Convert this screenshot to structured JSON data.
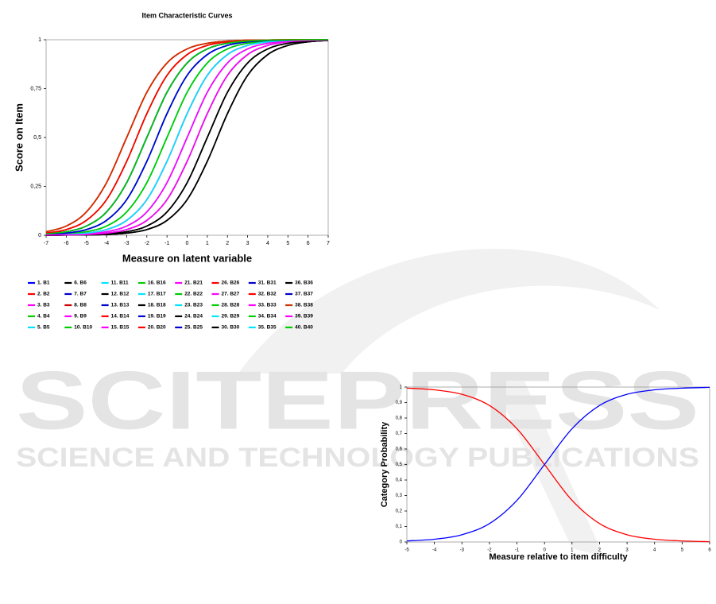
{
  "watermark": {
    "title": "SCITEPRESS",
    "subtitle": "SCIENCE AND TECHNOLOGY PUBLICATIONS"
  },
  "chart_data": [
    {
      "type": "line",
      "title": "Item Characteristic Curves",
      "x_label": "Measure on latent variable",
      "y_label": "Score on Item",
      "x": [
        -7,
        -6,
        -5,
        -4,
        -3,
        -2,
        -1,
        0,
        1,
        2,
        3,
        4,
        5,
        6,
        7
      ],
      "xlim": [
        -7,
        7
      ],
      "xticks": [
        -7,
        -6,
        -5,
        -4,
        -3,
        -2,
        -1,
        0,
        1,
        2,
        3,
        4,
        5,
        6,
        7
      ],
      "ylim": [
        0,
        1
      ],
      "yticks": [
        0,
        {
          "value": 0.25,
          "label": "0,25"
        },
        {
          "value": 0.5,
          "label": "0,5"
        },
        {
          "value": 0.75,
          "label": "0,75"
        },
        1
      ],
      "grid": false,
      "legend": "bottom",
      "series": [
        {
          "name": "1. B1",
          "color": "#0000ff",
          "values": [
            0.004,
            0.011,
            0.029,
            0.076,
            0.182,
            0.378,
            0.622,
            0.818,
            0.924,
            0.971,
            0.989,
            0.996,
            0.998,
            0.999,
            1
          ]
        },
        {
          "name": "2. B2",
          "color": "#ff0000",
          "values": [
            0.018,
            0.047,
            0.119,
            0.269,
            0.5,
            0.731,
            0.881,
            0.953,
            0.982,
            0.993,
            0.998,
            0.999,
            1,
            1,
            1
          ]
        },
        {
          "name": "3. B3",
          "color": "#ff00ff",
          "values": [
            0.001,
            0.002,
            0.007,
            0.018,
            0.047,
            0.119,
            0.269,
            0.5,
            0.731,
            0.881,
            0.953,
            0.982,
            0.993,
            0.998,
            0.999
          ]
        },
        {
          "name": "4. B4",
          "color": "#00cc00",
          "values": [
            0.011,
            0.029,
            0.076,
            0.182,
            0.378,
            0.622,
            0.818,
            0.924,
            0.971,
            0.989,
            0.996,
            0.998,
            0.999,
            1,
            1
          ]
        },
        {
          "name": "5. B5",
          "color": "#00e5ff",
          "values": [
            0.002,
            0.007,
            0.018,
            0.047,
            0.119,
            0.269,
            0.5,
            0.731,
            0.881,
            0.953,
            0.982,
            0.993,
            0.998,
            0.999,
            1
          ]
        },
        {
          "name": "6. B6",
          "color": "#000000",
          "values": [
            0,
            0.001,
            0.002,
            0.007,
            0.018,
            0.047,
            0.119,
            0.269,
            0.5,
            0.731,
            0.881,
            0.953,
            0.982,
            0.993,
            0.998
          ]
        },
        {
          "name": "7. B7",
          "color": "#0000cc",
          "values": [
            0.007,
            0.018,
            0.047,
            0.119,
            0.269,
            0.5,
            0.731,
            0.881,
            0.953,
            0.982,
            0.993,
            0.998,
            0.999,
            1,
            1
          ]
        },
        {
          "name": "8. B8",
          "color": "#cc0000",
          "values": [
            0.002,
            0.004,
            0.011,
            0.029,
            0.076,
            0.182,
            0.378,
            0.622,
            0.818,
            0.924,
            0.971,
            0.989,
            0.996,
            0.998,
            0.999
          ]
        },
        {
          "name": "9. B9",
          "color": "#ff00ff",
          "values": [
            0.001,
            0.002,
            0.004,
            0.011,
            0.029,
            0.076,
            0.182,
            0.378,
            0.622,
            0.818,
            0.924,
            0.971,
            0.989,
            0.996,
            0.998
          ]
        },
        {
          "name": "10. B10",
          "color": "#00cc00",
          "values": [
            0.011,
            0.029,
            0.076,
            0.182,
            0.378,
            0.622,
            0.818,
            0.924,
            0.971,
            0.989,
            0.996,
            0.998,
            0.999,
            1,
            1
          ]
        },
        {
          "name": "11. B11",
          "color": "#00e5ff",
          "values": [
            0.002,
            0.007,
            0.018,
            0.047,
            0.119,
            0.269,
            0.5,
            0.731,
            0.881,
            0.953,
            0.982,
            0.993,
            0.998,
            0.999,
            1
          ]
        },
        {
          "name": "12. B12",
          "color": "#000000",
          "values": [
            0,
            0.001,
            0.002,
            0.004,
            0.011,
            0.029,
            0.076,
            0.182,
            0.378,
            0.622,
            0.818,
            0.924,
            0.971,
            0.989,
            0.996
          ]
        },
        {
          "name": "13. B13",
          "color": "#0000cc",
          "values": [
            0.004,
            0.011,
            0.029,
            0.076,
            0.182,
            0.378,
            0.622,
            0.818,
            0.924,
            0.971,
            0.989,
            0.996,
            0.998,
            0.999,
            1
          ]
        },
        {
          "name": "14. B14",
          "color": "#ff0000",
          "values": [
            0.018,
            0.047,
            0.119,
            0.269,
            0.5,
            0.731,
            0.881,
            0.953,
            0.982,
            0.993,
            0.998,
            0.999,
            1,
            1,
            1
          ]
        },
        {
          "name": "15. B15",
          "color": "#ff00ff",
          "values": [
            0.001,
            0.002,
            0.007,
            0.018,
            0.047,
            0.119,
            0.269,
            0.5,
            0.731,
            0.881,
            0.953,
            0.982,
            0.993,
            0.998,
            0.999
          ]
        },
        {
          "name": "16. B16",
          "color": "#00cc00",
          "values": [
            0.007,
            0.018,
            0.047,
            0.119,
            0.269,
            0.5,
            0.731,
            0.881,
            0.953,
            0.982,
            0.993,
            0.998,
            0.999,
            1,
            1
          ]
        },
        {
          "name": "17. B17",
          "color": "#00e5ff",
          "values": [
            0.002,
            0.004,
            0.011,
            0.029,
            0.076,
            0.182,
            0.378,
            0.622,
            0.818,
            0.924,
            0.971,
            0.989,
            0.996,
            0.998,
            0.999
          ]
        },
        {
          "name": "18. B18",
          "color": "#000000",
          "values": [
            0,
            0.001,
            0.002,
            0.007,
            0.018,
            0.047,
            0.119,
            0.269,
            0.5,
            0.731,
            0.881,
            0.953,
            0.982,
            0.993,
            0.998
          ]
        },
        {
          "name": "19. B19",
          "color": "#0000cc",
          "values": [
            0.004,
            0.011,
            0.029,
            0.076,
            0.182,
            0.378,
            0.622,
            0.818,
            0.924,
            0.971,
            0.989,
            0.996,
            0.998,
            0.999,
            1
          ]
        },
        {
          "name": "20. B20",
          "color": "#ff0000",
          "values": [
            0.011,
            0.029,
            0.076,
            0.182,
            0.378,
            0.622,
            0.818,
            0.924,
            0.971,
            0.989,
            0.996,
            0.998,
            0.999,
            1,
            1
          ]
        },
        {
          "name": "21. B21",
          "color": "#ff00ff",
          "values": [
            0.001,
            0.002,
            0.004,
            0.011,
            0.029,
            0.076,
            0.182,
            0.378,
            0.622,
            0.818,
            0.924,
            0.971,
            0.989,
            0.996,
            0.998
          ]
        },
        {
          "name": "22. B22",
          "color": "#00cc00",
          "values": [
            0.002,
            0.007,
            0.018,
            0.047,
            0.119,
            0.269,
            0.5,
            0.731,
            0.881,
            0.953,
            0.982,
            0.993,
            0.998,
            0.999,
            1
          ]
        },
        {
          "name": "23. B23",
          "color": "#00e5ff",
          "values": [
            0.001,
            0.002,
            0.007,
            0.018,
            0.047,
            0.119,
            0.269,
            0.5,
            0.731,
            0.881,
            0.953,
            0.982,
            0.993,
            0.998,
            0.999
          ]
        },
        {
          "name": "24. B24",
          "color": "#000000",
          "values": [
            0,
            0.001,
            0.002,
            0.004,
            0.011,
            0.029,
            0.076,
            0.182,
            0.378,
            0.622,
            0.818,
            0.924,
            0.971,
            0.989,
            0.996
          ]
        },
        {
          "name": "25. B25",
          "color": "#0000cc",
          "values": [
            0.007,
            0.018,
            0.047,
            0.119,
            0.269,
            0.5,
            0.731,
            0.881,
            0.953,
            0.982,
            0.993,
            0.998,
            0.999,
            1,
            1
          ]
        },
        {
          "name": "26. B26",
          "color": "#ff0000",
          "values": [
            0.018,
            0.047,
            0.119,
            0.269,
            0.5,
            0.731,
            0.881,
            0.953,
            0.982,
            0.993,
            0.998,
            0.999,
            1,
            1,
            1
          ]
        },
        {
          "name": "27. B27",
          "color": "#ff00ff",
          "values": [
            0.002,
            0.004,
            0.011,
            0.029,
            0.076,
            0.182,
            0.378,
            0.622,
            0.818,
            0.924,
            0.971,
            0.989,
            0.996,
            0.998,
            0.999
          ]
        },
        {
          "name": "28. B28",
          "color": "#00cc00",
          "values": [
            0.001,
            0.002,
            0.004,
            0.011,
            0.029,
            0.076,
            0.182,
            0.378,
            0.622,
            0.818,
            0.924,
            0.971,
            0.989,
            0.996,
            0.998
          ]
        },
        {
          "name": "29. B29",
          "color": "#00e5ff",
          "values": [
            0.004,
            0.011,
            0.029,
            0.076,
            0.182,
            0.378,
            0.622,
            0.818,
            0.924,
            0.971,
            0.989,
            0.996,
            0.998,
            0.999,
            1
          ]
        },
        {
          "name": "30. B30",
          "color": "#000000",
          "values": [
            0,
            0.001,
            0.002,
            0.004,
            0.011,
            0.029,
            0.076,
            0.182,
            0.378,
            0.622,
            0.818,
            0.924,
            0.971,
            0.989,
            0.996
          ]
        },
        {
          "name": "31. B31",
          "color": "#0000cc",
          "values": [
            0.007,
            0.018,
            0.047,
            0.119,
            0.269,
            0.5,
            0.731,
            0.881,
            0.953,
            0.982,
            0.993,
            0.998,
            0.999,
            1,
            1
          ]
        },
        {
          "name": "32. B32",
          "color": "#ff0000",
          "values": [
            0.011,
            0.029,
            0.076,
            0.182,
            0.378,
            0.622,
            0.818,
            0.924,
            0.971,
            0.989,
            0.996,
            0.998,
            0.999,
            1,
            1
          ]
        },
        {
          "name": "33. B33",
          "color": "#ff00ff",
          "values": [
            0.001,
            0.002,
            0.007,
            0.018,
            0.047,
            0.119,
            0.269,
            0.5,
            0.731,
            0.881,
            0.953,
            0.982,
            0.993,
            0.998,
            0.999
          ]
        },
        {
          "name": "34. B34",
          "color": "#00cc00",
          "values": [
            0.002,
            0.007,
            0.018,
            0.047,
            0.119,
            0.269,
            0.5,
            0.731,
            0.881,
            0.953,
            0.982,
            0.993,
            0.998,
            0.999,
            1
          ]
        },
        {
          "name": "35. B35",
          "color": "#00e5ff",
          "values": [
            0.002,
            0.004,
            0.011,
            0.029,
            0.076,
            0.182,
            0.378,
            0.622,
            0.818,
            0.924,
            0.971,
            0.989,
            0.996,
            0.998,
            0.999
          ]
        },
        {
          "name": "36. B36",
          "color": "#000000",
          "values": [
            0,
            0.001,
            0.002,
            0.007,
            0.018,
            0.047,
            0.119,
            0.269,
            0.5,
            0.731,
            0.881,
            0.953,
            0.982,
            0.993,
            0.998
          ]
        },
        {
          "name": "37. B37",
          "color": "#0000cc",
          "values": [
            0.004,
            0.011,
            0.029,
            0.076,
            0.182,
            0.378,
            0.622,
            0.818,
            0.924,
            0.971,
            0.989,
            0.996,
            0.998,
            0.999,
            1
          ]
        },
        {
          "name": "38. B38",
          "color": "#cc3300",
          "values": [
            0.018,
            0.047,
            0.119,
            0.269,
            0.5,
            0.731,
            0.881,
            0.953,
            0.982,
            0.993,
            0.998,
            0.999,
            1,
            1,
            1
          ]
        },
        {
          "name": "39. B39",
          "color": "#ff00ff",
          "values": [
            0.001,
            0.002,
            0.004,
            0.011,
            0.029,
            0.076,
            0.182,
            0.378,
            0.622,
            0.818,
            0.924,
            0.971,
            0.989,
            0.996,
            0.998
          ]
        },
        {
          "name": "40. B40",
          "color": "#00cc00",
          "values": [
            0.007,
            0.018,
            0.047,
            0.119,
            0.269,
            0.5,
            0.731,
            0.881,
            0.953,
            0.982,
            0.993,
            0.998,
            0.999,
            1,
            1
          ]
        }
      ]
    },
    {
      "type": "line",
      "x_label": "Measure relative to item difficulty",
      "y_label": "Category Probability",
      "x": [
        -5,
        -4,
        -3,
        -2,
        -1,
        0,
        1,
        2,
        3,
        4,
        5,
        6
      ],
      "xlim": [
        -5,
        6
      ],
      "xticks": [
        -5,
        -4,
        -3,
        -2,
        -1,
        0,
        1,
        2,
        3,
        4,
        5,
        6
      ],
      "ylim": [
        0,
        1
      ],
      "yticks": [
        0,
        {
          "value": 0.1,
          "label": "0,1"
        },
        {
          "value": 0.2,
          "label": "0,2"
        },
        {
          "value": 0.3,
          "label": "0,3"
        },
        {
          "value": 0.4,
          "label": "0,4"
        },
        {
          "value": 0.5,
          "label": "0,5"
        },
        {
          "value": 0.6,
          "label": "0,6"
        },
        {
          "value": 0.7,
          "label": "0,7"
        },
        {
          "value": 0.8,
          "label": "0,8"
        },
        {
          "value": 0.9,
          "label": "0,9"
        },
        1
      ],
      "grid": false,
      "series": [
        {
          "color": "#ff0000",
          "values": [
            0.993,
            0.982,
            0.953,
            0.881,
            0.731,
            0.5,
            0.269,
            0.119,
            0.047,
            0.018,
            0.007,
            0.002
          ]
        },
        {
          "color": "#0000ff",
          "values": [
            0.007,
            0.018,
            0.047,
            0.119,
            0.269,
            0.5,
            0.731,
            0.881,
            0.953,
            0.982,
            0.993,
            0.998
          ]
        }
      ]
    }
  ]
}
